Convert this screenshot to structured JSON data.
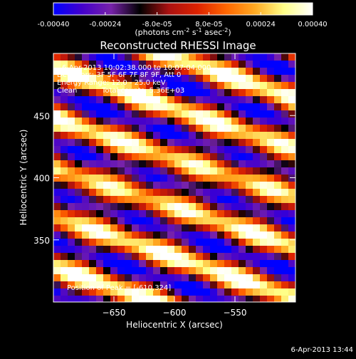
{
  "chart_data": {
    "type": "heatmap",
    "title": "Reconstructed RHESSI Image",
    "xlabel": "Heliocentric X (arcsec)",
    "ylabel": "Heliocentric Y (arcsec)",
    "xlim": [
      -700,
      -500
    ],
    "ylim": [
      300,
      500
    ],
    "xticks": [
      -650,
      -600,
      -550
    ],
    "yticks": [
      350,
      400,
      450
    ],
    "colorbar": {
      "ticks": [
        -0.0004,
        -0.00024,
        -8e-05,
        8e-05,
        0.00024,
        0.0004
      ],
      "tick_labels": [
        "-0.00040",
        "-0.00024",
        "-8.0e-05",
        "8.0e-05",
        "0.00024",
        "0.00040"
      ],
      "label_main": "(photons cm",
      "label_sup1": "-2",
      "label_mid1": " s",
      "label_sup2": "-1",
      "label_mid2": " asec",
      "label_sup3": "-2",
      "label_end": ")",
      "colors": [
        "#0000ff",
        "#4400cc",
        "#7722aa",
        "#000000",
        "#aa1111",
        "#dd2200",
        "#ff6600",
        "#ffaa22",
        "#ffff88",
        "#ffffff"
      ]
    },
    "annotations": [
      "6-Apr-2013 10:02:38.000 to 10:07:04.000",
      "Detectors: 3F 5F 6F 7F 8F 9F, Att 0",
      "Energy Range: 12.0 - 25.0 keV",
      "Clean",
      "Total counts: 5.36E+03",
      "Position of Peak = [-610,324]"
    ],
    "peak": [
      -610,
      324
    ]
  },
  "timestamp": "6-Apr-2013 13:44"
}
